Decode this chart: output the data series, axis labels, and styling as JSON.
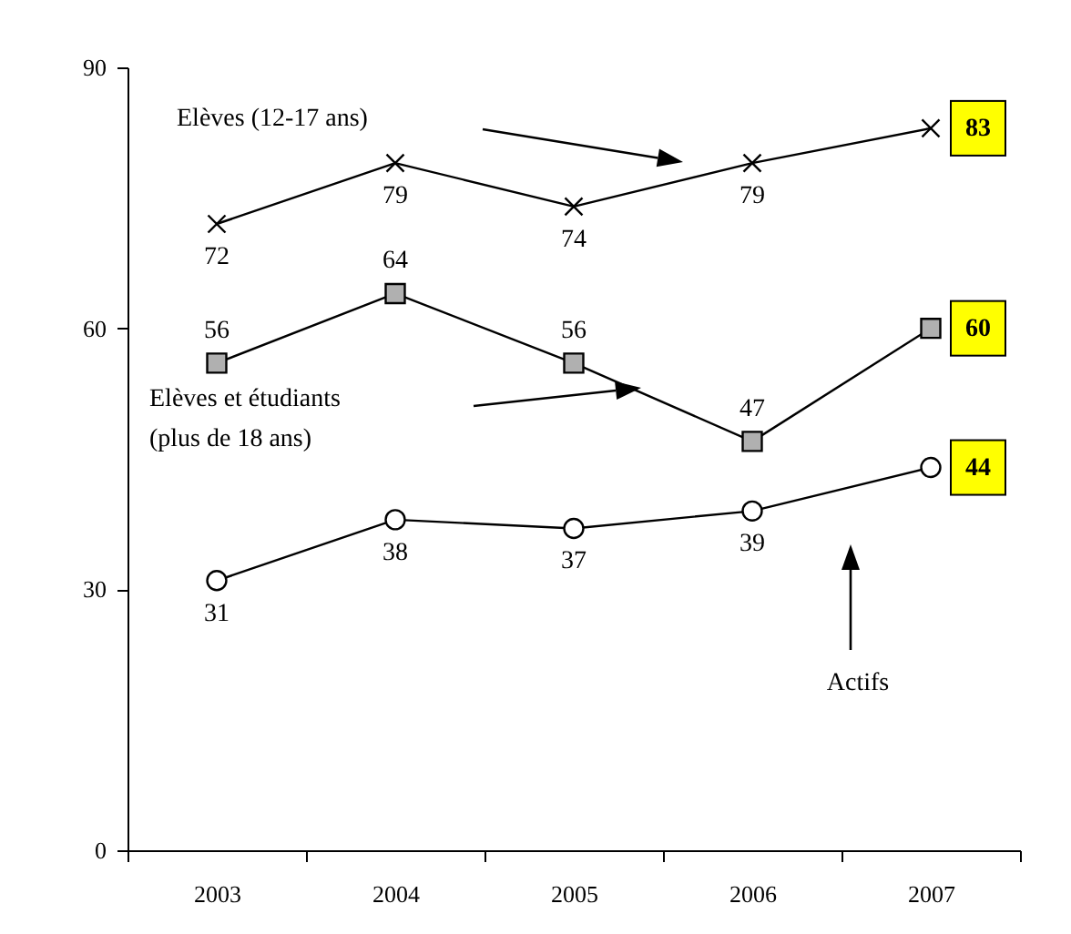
{
  "chart_data": {
    "type": "line",
    "categories": [
      "2003",
      "2004",
      "2005",
      "2006",
      "2007"
    ],
    "ylim": [
      0,
      90
    ],
    "yticks": [
      0,
      30,
      60,
      90
    ],
    "grid": false,
    "legend": false,
    "data_labels": true,
    "line_style": "solid",
    "series": [
      {
        "name": "Elèves (12-17 ans)",
        "color": "#000000",
        "marker": "cross",
        "values": [
          72,
          79,
          74,
          79,
          83
        ]
      },
      {
        "name": "Elèves et étudiants (plus de 18 ans)",
        "color": "#000000",
        "marker": "square",
        "values": [
          56,
          64,
          56,
          47,
          60
        ]
      },
      {
        "name": "Actifs",
        "color": "#000000",
        "marker": "circle",
        "values": [
          31,
          38,
          37,
          39,
          44
        ]
      }
    ]
  }
}
